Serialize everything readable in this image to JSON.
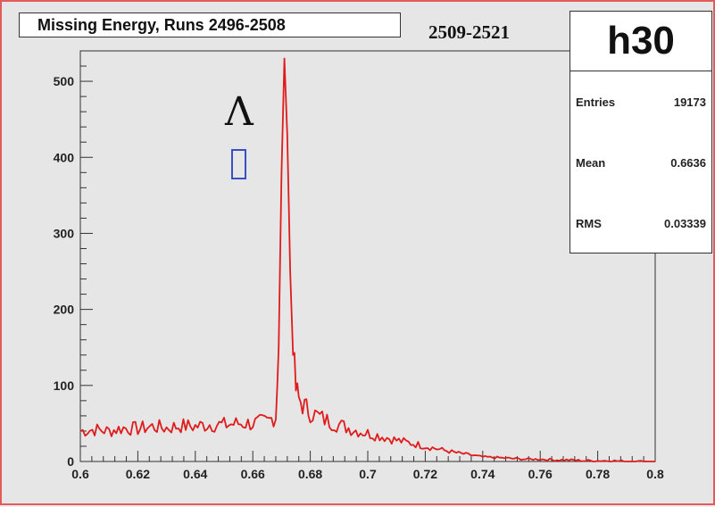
{
  "chart_data": {
    "type": "line",
    "title": "Missing Energy, Runs 2496-2508",
    "subtitle": "2509-2521",
    "xlabel": "",
    "ylabel": "",
    "xlim": [
      0.6,
      0.8
    ],
    "ylim": [
      0,
      540
    ],
    "x_ticks": [
      "0.6",
      "0.62",
      "0.64",
      "0.66",
      "0.68",
      "0.7",
      "0.72",
      "0.74",
      "0.76",
      "0.78",
      "0.8"
    ],
    "y_ticks": [
      "0",
      "100",
      "200",
      "300",
      "400",
      "500"
    ],
    "series": [
      {
        "color": "#e01b1b",
        "x": [
          0.6,
          0.605,
          0.61,
          0.615,
          0.62,
          0.625,
          0.63,
          0.635,
          0.64,
          0.645,
          0.65,
          0.655,
          0.66,
          0.665,
          0.668,
          0.669,
          0.67,
          0.671,
          0.672,
          0.673,
          0.674,
          0.675,
          0.676,
          0.678,
          0.68,
          0.685,
          0.69,
          0.695,
          0.7,
          0.705,
          0.71,
          0.715,
          0.72,
          0.725,
          0.73,
          0.735,
          0.74,
          0.745,
          0.75,
          0.755,
          0.76,
          0.765,
          0.77,
          0.775,
          0.78,
          0.785,
          0.79,
          0.795,
          0.8
        ],
        "y": [
          40,
          42,
          40,
          44,
          43,
          46,
          44,
          47,
          46,
          49,
          48,
          50,
          50,
          52,
          60,
          150,
          380,
          530,
          430,
          250,
          140,
          95,
          82,
          72,
          65,
          55,
          48,
          42,
          37,
          33,
          28,
          24,
          20,
          16,
          12,
          9,
          6,
          5,
          4,
          3,
          3,
          2,
          2,
          1,
          1,
          1,
          0,
          0,
          0
        ]
      }
    ],
    "annotations": [
      {
        "text": "Λ"
      }
    ],
    "stats": {
      "name": "h30",
      "entries_label": "Entries",
      "entries": "19173",
      "mean_label": "Mean",
      "mean": "0.6636",
      "rms_label": "RMS",
      "rms": "0.03339"
    },
    "grid": false,
    "legend_position": "top-right"
  }
}
